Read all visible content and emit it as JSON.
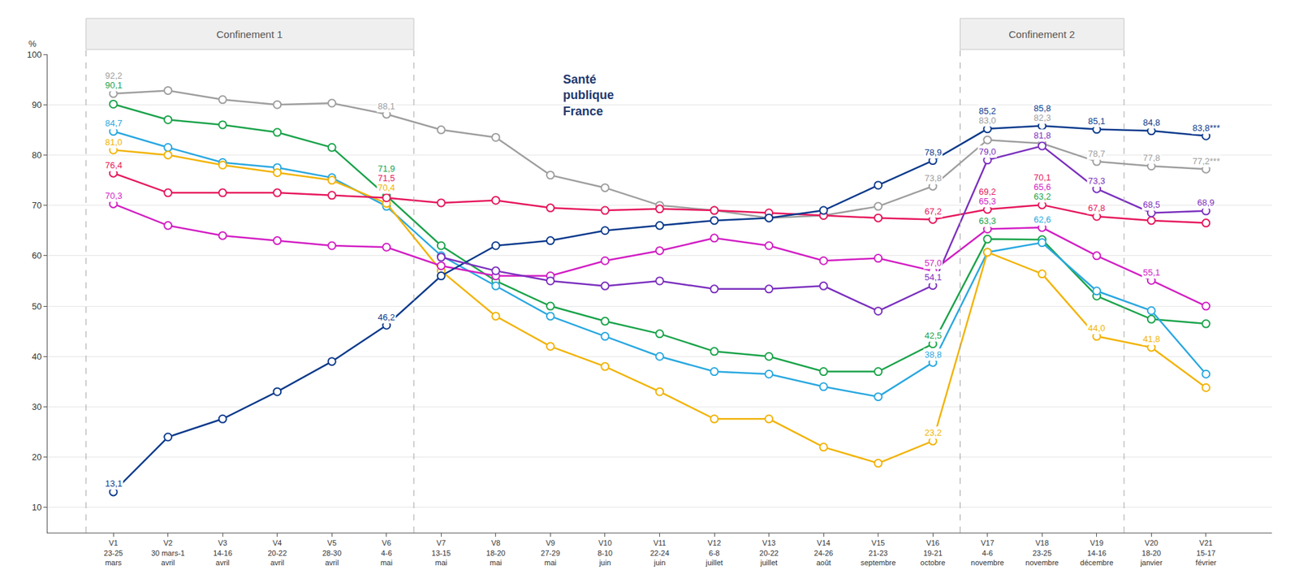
{
  "chart_data": {
    "type": "line",
    "y_label": "%",
    "logo": "Santé publique France",
    "categories": [
      "V1 23-25 mars",
      "V2 30 mars-1 avril",
      "V3 14-16 avril",
      "V4 20-22 avril",
      "V5 28-30 avril",
      "V6 4-6 mai",
      "V7 13-15 mai",
      "V8 18-20 mai",
      "V9 27-29 mai",
      "V10 8-10 juin",
      "V11 22-24 juin",
      "V12 6-8 juillet",
      "V13 20-22 juillet",
      "V14 24-26 août",
      "V15 21-23 septembre",
      "V16 19-21 octobre",
      "V17 4-6 novembre",
      "V18 23-25 novembre",
      "V19 14-16 décembre",
      "V20 18-20 janvier",
      "V21 15-17 février"
    ],
    "series": [
      {
        "color": "#9e9e9e",
        "marker": "circle",
        "line_style": "solid",
        "values": [
          92.2,
          92.8,
          91.0,
          90.0,
          90.3,
          88.1,
          85.0,
          83.5,
          76.0,
          73.5,
          70.0,
          69.0,
          67.5,
          68.0,
          69.8,
          73.8,
          83.0,
          82.3,
          78.7,
          77.8,
          77.2
        ],
        "value_labels": [
          "92,2",
          null,
          null,
          null,
          null,
          "88,1",
          null,
          null,
          null,
          null,
          null,
          null,
          null,
          null,
          null,
          "73,8",
          "83,0",
          "82,3",
          "78,7",
          "77,8",
          "77,2***"
        ]
      },
      {
        "color": "#1aa34a",
        "marker": "circle",
        "line_style": "solid",
        "values": [
          90.1,
          87.0,
          86.0,
          84.5,
          81.5,
          71.9,
          62.0,
          55.0,
          50.0,
          47.0,
          44.5,
          41.0,
          40.0,
          37.0,
          37.0,
          42.5,
          63.3,
          63.2,
          52.0,
          47.4,
          46.5
        ],
        "value_labels": [
          "90,1",
          null,
          null,
          null,
          null,
          "71,9",
          null,
          null,
          null,
          null,
          null,
          null,
          null,
          null,
          null,
          "42,5",
          "63,3",
          "63,2",
          null,
          null,
          null
        ]
      },
      {
        "color": "#29a8e0",
        "marker": "circle",
        "line_style": "solid",
        "values": [
          84.7,
          81.5,
          78.5,
          77.5,
          75.5,
          69.8,
          60.0,
          54.0,
          48.0,
          44.0,
          40.0,
          37.0,
          36.5,
          34.0,
          32.0,
          38.8,
          60.7,
          62.6,
          53.0,
          49.1,
          36.5
        ],
        "value_labels": [
          "84,7",
          null,
          null,
          null,
          null,
          null,
          null,
          null,
          null,
          null,
          null,
          null,
          null,
          null,
          null,
          "38,8",
          null,
          "62,6",
          null,
          null,
          null
        ]
      },
      {
        "color": "#f2b300",
        "marker": "circle",
        "line_style": "solid",
        "values": [
          81.0,
          80.0,
          78.0,
          76.5,
          75.0,
          70.4,
          57.0,
          48.0,
          42.0,
          38.0,
          33.0,
          27.6,
          27.6,
          22.0,
          18.8,
          23.2,
          60.7,
          56.4,
          44.0,
          41.8,
          33.8
        ],
        "value_labels": [
          "81,0",
          null,
          null,
          null,
          null,
          "70,4",
          null,
          null,
          null,
          null,
          null,
          null,
          null,
          null,
          null,
          "23,2",
          null,
          null,
          "44,0",
          "41,8",
          null
        ]
      },
      {
        "color": "#e6175c",
        "marker": "circle",
        "line_style": "solid",
        "values": [
          76.4,
          72.5,
          72.5,
          72.5,
          72.0,
          71.5,
          70.5,
          71.0,
          69.5,
          69.0,
          69.3,
          69.0,
          68.5,
          68.0,
          67.5,
          67.2,
          69.2,
          70.1,
          67.8,
          67.0,
          66.5
        ],
        "value_labels": [
          "76,4",
          null,
          null,
          null,
          null,
          "71,5",
          null,
          null,
          null,
          null,
          null,
          null,
          null,
          null,
          null,
          "67,2",
          "69,2",
          "70,1",
          "67,8",
          null,
          null
        ]
      },
      {
        "color": "#d21ec4",
        "marker": "circle",
        "line_style": "solid",
        "values": [
          70.3,
          66.0,
          64.0,
          63.0,
          62.0,
          61.7,
          58.0,
          56.0,
          56.0,
          59.0,
          61.0,
          63.5,
          62.0,
          59.0,
          59.5,
          57.0,
          65.3,
          65.6,
          60.0,
          55.1,
          50.0
        ],
        "value_labels": [
          "70,3",
          null,
          null,
          null,
          null,
          null,
          null,
          null,
          null,
          null,
          null,
          null,
          null,
          null,
          null,
          "57,0",
          "65,3",
          "65,6",
          null,
          "55,1",
          null
        ]
      },
      {
        "color": "#0a3a8c",
        "marker": "circle",
        "line_style": "solid",
        "values": [
          13.1,
          24.0,
          27.6,
          33.0,
          39.0,
          46.2,
          56.0,
          62.0,
          63.0,
          65.0,
          66.0,
          67.0,
          67.5,
          69.0,
          74.0,
          78.9,
          85.2,
          85.8,
          85.1,
          84.8,
          83.8
        ],
        "value_labels": [
          "13,1",
          null,
          null,
          null,
          null,
          "46,2",
          null,
          null,
          null,
          null,
          null,
          null,
          null,
          null,
          null,
          "78,9",
          "85,2",
          "85,8",
          "85,1",
          "84,8",
          "83,8***"
        ]
      },
      {
        "color": "#7b2fbe",
        "marker": "circle",
        "line_style": "solid",
        "values": [
          null,
          null,
          null,
          null,
          null,
          null,
          59.7,
          57.0,
          55.0,
          54.0,
          55.0,
          53.4,
          53.4,
          54.0,
          49.0,
          54.1,
          79.0,
          81.8,
          73.3,
          68.5,
          68.9
        ],
        "value_labels": [
          null,
          null,
          null,
          null,
          null,
          null,
          null,
          null,
          null,
          null,
          null,
          null,
          null,
          null,
          null,
          "54,1",
          "79,0",
          "81,8",
          "73,3",
          "68,5",
          "68,9"
        ]
      }
    ],
    "ylim": [
      5,
      100
    ],
    "yticks": [
      10,
      20,
      30,
      40,
      50,
      60,
      70,
      80,
      90,
      100
    ],
    "grid": true,
    "data_labels": true,
    "annotations": [
      {
        "text": "Confinement 1",
        "from": "V1 23-25 mars",
        "to": "V6 4-6 mai"
      },
      {
        "text": "Confinement 2",
        "from": "V17 4-6 novembre",
        "to": "V19 14-16 décembre"
      }
    ]
  }
}
